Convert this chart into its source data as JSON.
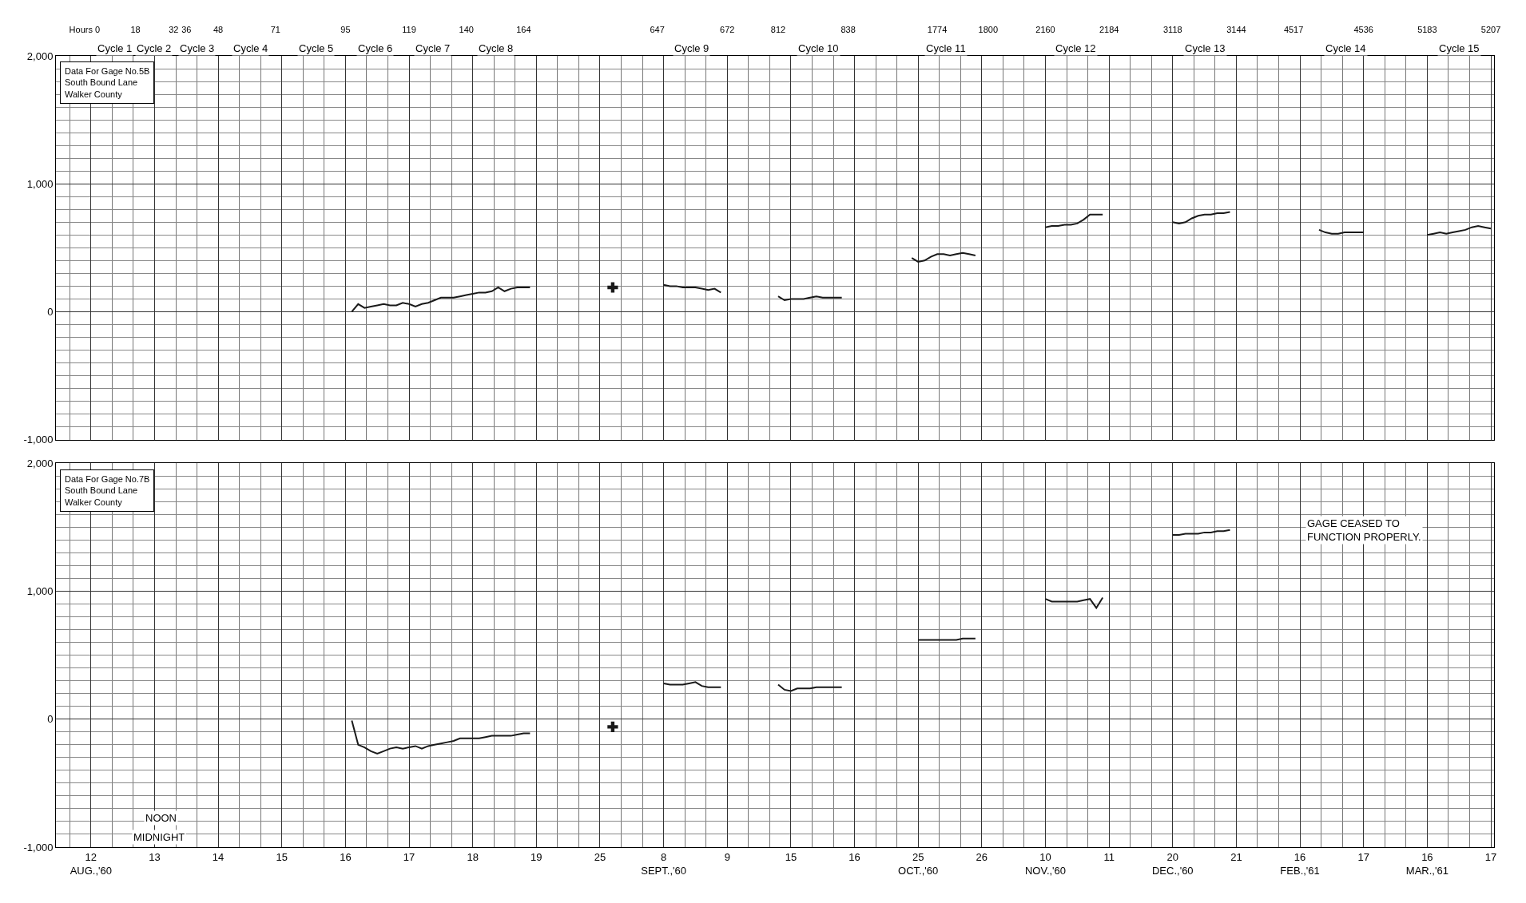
{
  "chart_data": [
    {
      "type": "line",
      "categories": [
        null,
        null,
        null,
        null,
        "Hours 0",
        null,
        null,
        null,
        null,
        null,
        null,
        null,
        "18",
        null,
        null,
        null,
        null,
        null,
        "32",
        null,
        "36",
        null,
        null,
        null,
        null,
        "48",
        null,
        null,
        null,
        null,
        null,
        null,
        null,
        null,
        "71",
        null,
        null,
        null,
        null,
        null,
        null,
        null,
        null,
        null,
        null,
        "95",
        null,
        null,
        null,
        null,
        null,
        null,
        null,
        null,
        null,
        "119",
        null,
        null,
        null,
        null,
        null,
        null,
        null,
        null,
        "140",
        null,
        null,
        null,
        null,
        null,
        null,
        null,
        null,
        "164",
        null,
        null,
        null,
        null,
        null,
        null,
        null,
        null,
        null,
        null,
        null,
        null,
        null,
        null,
        null,
        null,
        null,
        null,
        null,
        null,
        "647",
        null,
        null,
        null,
        null,
        null,
        null,
        null,
        null,
        null,
        null,
        "672",
        null,
        null,
        null,
        null,
        null,
        null,
        null,
        "812",
        null,
        null,
        null,
        null,
        null,
        null,
        null,
        null,
        null,
        null,
        "838",
        null,
        null,
        null,
        null,
        null,
        null,
        null,
        null,
        null,
        null,
        null,
        null,
        null,
        "1774",
        null,
        null,
        null,
        null,
        null,
        null,
        null,
        "1800",
        null,
        null,
        null,
        null,
        null,
        null,
        null,
        null,
        "2160",
        null,
        null,
        null,
        null,
        null,
        null,
        null,
        null,
        null,
        "2184",
        null,
        null,
        null,
        null,
        null,
        null,
        null,
        null,
        null,
        "3118",
        null,
        null,
        null,
        null,
        null,
        null,
        null,
        null,
        null,
        "3144",
        null,
        null,
        null,
        null,
        null,
        null,
        null,
        null,
        "4517",
        null,
        null,
        null,
        null,
        null,
        null,
        null,
        null,
        null,
        null,
        "4536",
        null,
        null,
        null,
        null,
        null,
        null,
        null,
        null,
        null,
        "5183",
        null,
        null,
        null,
        null,
        null,
        null,
        null,
        null,
        null,
        "5207"
      ],
      "ylim": [
        -1000,
        2000
      ],
      "yticks": [
        {
          "value": -1000,
          "label": "-1,000"
        },
        {
          "value": 0,
          "label": "0"
        },
        {
          "value": 1000,
          "label": "1,000"
        },
        {
          "value": 2000,
          "label": "2,000"
        }
      ],
      "grid": true,
      "series": [
        {
          "color": "#1a1a1a",
          "values": [
            null,
            null,
            null,
            null,
            null,
            null,
            null,
            null,
            null,
            null,
            null,
            null,
            null,
            null,
            null,
            null,
            null,
            null,
            null,
            null,
            null,
            null,
            null,
            null,
            null,
            null,
            null,
            null,
            null,
            null,
            null,
            null,
            null,
            null,
            null,
            null,
            null,
            null,
            null,
            null,
            null,
            null,
            null,
            null,
            null,
            null,
            0,
            60,
            30,
            40,
            50,
            60,
            50,
            50,
            70,
            60,
            40,
            60,
            70,
            90,
            110,
            110,
            110,
            120,
            130,
            140,
            150,
            150,
            160,
            190,
            160,
            180,
            190,
            190,
            190,
            null,
            null,
            null,
            null,
            null,
            null,
            null,
            null,
            null,
            null,
            null,
            null,
            null,
            null,
            null,
            null,
            null,
            null,
            null,
            null,
            210,
            200,
            200,
            190,
            190,
            190,
            180,
            170,
            180,
            150,
            null,
            null,
            null,
            null,
            null,
            null,
            null,
            null,
            120,
            90,
            100,
            100,
            100,
            110,
            120,
            110,
            110,
            110,
            110,
            null,
            null,
            null,
            null,
            null,
            null,
            null,
            null,
            null,
            null,
            420,
            390,
            400,
            430,
            450,
            450,
            440,
            450,
            460,
            450,
            440,
            null,
            null,
            null,
            null,
            null,
            null,
            null,
            null,
            null,
            null,
            660,
            670,
            670,
            680,
            680,
            690,
            720,
            760,
            760,
            760,
            null,
            null,
            null,
            null,
            null,
            null,
            null,
            null,
            null,
            null,
            700,
            690,
            700,
            730,
            750,
            760,
            760,
            770,
            770,
            780,
            null,
            null,
            null,
            null,
            null,
            null,
            null,
            null,
            null,
            null,
            null,
            null,
            null,
            640,
            620,
            610,
            610,
            620,
            620,
            620,
            620,
            null,
            null,
            null,
            null,
            null,
            null,
            null,
            null,
            null,
            600,
            610,
            620,
            610,
            620,
            630,
            640,
            660,
            670,
            660,
            650
          ]
        },
        {
          "type": "scatter",
          "marker": "cross",
          "color": "#1a1a1a",
          "values": [
            null,
            null,
            null,
            null,
            null,
            null,
            null,
            null,
            null,
            null,
            null,
            null,
            null,
            null,
            null,
            null,
            null,
            null,
            null,
            null,
            null,
            null,
            null,
            null,
            null,
            null,
            null,
            null,
            null,
            null,
            null,
            null,
            null,
            null,
            null,
            null,
            null,
            null,
            null,
            null,
            null,
            null,
            null,
            null,
            null,
            null,
            null,
            null,
            null,
            null,
            null,
            null,
            null,
            null,
            null,
            null,
            null,
            null,
            null,
            null,
            null,
            null,
            null,
            null,
            null,
            null,
            null,
            null,
            null,
            null,
            null,
            null,
            null,
            null,
            null,
            null,
            null,
            null,
            null,
            null,
            null,
            null,
            null,
            null,
            null,
            null,
            null,
            190,
            null,
            null,
            null,
            null,
            null,
            null,
            null,
            null,
            null,
            null,
            null,
            null,
            null,
            null,
            null,
            null,
            null,
            null,
            null,
            null,
            null,
            null,
            null,
            null,
            null,
            null,
            null,
            null,
            null,
            null,
            null,
            null,
            null,
            null,
            null,
            null,
            null,
            null,
            null,
            null,
            null,
            null,
            null,
            null,
            null,
            null,
            null,
            null,
            null,
            null,
            null,
            null,
            null,
            null,
            null,
            null,
            null,
            null,
            null,
            null,
            null,
            null,
            null,
            null,
            null,
            null,
            null,
            null,
            null,
            null,
            null,
            null,
            null,
            null,
            null,
            null,
            null,
            null,
            null,
            null,
            null,
            null,
            null,
            null,
            null,
            null,
            null,
            null,
            null,
            null,
            null,
            null,
            null,
            null,
            null,
            null,
            null,
            null,
            null,
            null,
            null,
            null,
            null,
            null,
            null,
            null,
            null,
            null,
            null,
            null,
            null,
            null,
            null,
            null,
            null,
            null,
            null,
            null,
            null,
            null,
            null,
            null,
            null,
            null,
            null,
            null,
            null,
            null,
            null,
            null,
            null,
            null,
            null,
            null,
            null,
            null,
            null,
            null
          ]
        }
      ],
      "annotations": [
        "Data For Gage No.5B\nSouth Bound Lane\nWalker County",
        "Cycle 1",
        "Cycle 2",
        "Cycle 3",
        "Cycle 4",
        "Cycle 5",
        "Cycle 6",
        "Cycle 7",
        "Cycle 8",
        "Cycle 9",
        "Cycle 10",
        "Cycle 11",
        "Cycle 12",
        "Cycle 13",
        "Cycle 14",
        "Cycle 15"
      ]
    },
    {
      "type": "line",
      "categories": [
        null,
        null,
        null,
        null,
        null,
        "12\nAUG.,'60",
        null,
        null,
        null,
        null,
        null,
        null,
        null,
        null,
        null,
        "13",
        null,
        null,
        null,
        null,
        null,
        null,
        null,
        null,
        null,
        "14",
        null,
        null,
        null,
        null,
        null,
        null,
        null,
        null,
        null,
        "15",
        null,
        null,
        null,
        null,
        null,
        null,
        null,
        null,
        null,
        "16",
        null,
        null,
        null,
        null,
        null,
        null,
        null,
        null,
        null,
        "17",
        null,
        null,
        null,
        null,
        null,
        null,
        null,
        null,
        null,
        "18",
        null,
        null,
        null,
        null,
        null,
        null,
        null,
        null,
        null,
        "19",
        null,
        null,
        null,
        null,
        null,
        null,
        null,
        null,
        null,
        "25",
        null,
        null,
        null,
        null,
        null,
        null,
        null,
        null,
        null,
        "8\nSEPT.,'60",
        null,
        null,
        null,
        null,
        null,
        null,
        null,
        null,
        null,
        "9",
        null,
        null,
        null,
        null,
        null,
        null,
        null,
        null,
        null,
        "15",
        null,
        null,
        null,
        null,
        null,
        null,
        null,
        null,
        null,
        "16",
        null,
        null,
        null,
        null,
        null,
        null,
        null,
        null,
        null,
        "25\nOCT.,'60",
        null,
        null,
        null,
        null,
        null,
        null,
        null,
        null,
        null,
        "26",
        null,
        null,
        null,
        null,
        null,
        null,
        null,
        null,
        null,
        "10\nNOV.,'60",
        null,
        null,
        null,
        null,
        null,
        null,
        null,
        null,
        null,
        "11",
        null,
        null,
        null,
        null,
        null,
        null,
        null,
        null,
        null,
        "20\nDEC.,'60",
        null,
        null,
        null,
        null,
        null,
        null,
        null,
        null,
        null,
        "21",
        null,
        null,
        null,
        null,
        null,
        null,
        null,
        null,
        null,
        "16\nFEB.,'61",
        null,
        null,
        null,
        null,
        null,
        null,
        null,
        null,
        null,
        "17",
        null,
        null,
        null,
        null,
        null,
        null,
        null,
        null,
        null,
        "16\nMAR.,'61",
        null,
        null,
        null,
        null,
        null,
        null,
        null,
        null,
        null,
        "17"
      ],
      "ylim": [
        -1000,
        2000
      ],
      "yticks": [
        {
          "value": -1000,
          "label": "-1,000"
        },
        {
          "value": 0,
          "label": "0"
        },
        {
          "value": 1000,
          "label": "1,000"
        },
        {
          "value": 2000,
          "label": "2,000"
        }
      ],
      "grid": true,
      "series": [
        {
          "color": "#1a1a1a",
          "values": [
            null,
            null,
            null,
            null,
            null,
            null,
            null,
            null,
            null,
            null,
            null,
            null,
            null,
            null,
            null,
            null,
            null,
            null,
            null,
            null,
            null,
            null,
            null,
            null,
            null,
            null,
            null,
            null,
            null,
            null,
            null,
            null,
            null,
            null,
            null,
            null,
            null,
            null,
            null,
            null,
            null,
            null,
            null,
            null,
            null,
            null,
            -10,
            -200,
            -220,
            -250,
            -270,
            -250,
            -230,
            -220,
            -230,
            -220,
            -210,
            -230,
            -210,
            -200,
            -190,
            -180,
            -170,
            -150,
            -150,
            -150,
            -150,
            -140,
            -130,
            -130,
            -130,
            -130,
            -120,
            -110,
            -110,
            null,
            null,
            null,
            null,
            null,
            null,
            null,
            null,
            null,
            null,
            null,
            null,
            null,
            null,
            null,
            null,
            null,
            null,
            null,
            null,
            280,
            270,
            270,
            270,
            280,
            290,
            260,
            250,
            250,
            250,
            null,
            null,
            null,
            null,
            null,
            null,
            null,
            null,
            270,
            230,
            220,
            240,
            240,
            240,
            250,
            250,
            250,
            250,
            250,
            null,
            null,
            null,
            null,
            null,
            null,
            null,
            null,
            null,
            null,
            null,
            620,
            620,
            620,
            620,
            620,
            620,
            620,
            630,
            630,
            630,
            null,
            null,
            null,
            null,
            null,
            null,
            null,
            null,
            null,
            null,
            940,
            920,
            920,
            920,
            920,
            920,
            930,
            940,
            870,
            950,
            null,
            null,
            null,
            null,
            null,
            null,
            null,
            null,
            null,
            null,
            1440,
            1440,
            1450,
            1450,
            1450,
            1460,
            1460,
            1470,
            1470,
            1480,
            null,
            null,
            null,
            null,
            null,
            null,
            null,
            null,
            null,
            null,
            null,
            null,
            null,
            null,
            null,
            null,
            null,
            null,
            null,
            null,
            null,
            null,
            null,
            null,
            null,
            null,
            null,
            null,
            null,
            null,
            null,
            null,
            null,
            null,
            null,
            null,
            null,
            null,
            null,
            null,
            null
          ]
        },
        {
          "type": "scatter",
          "marker": "cross",
          "color": "#1a1a1a",
          "values": [
            null,
            null,
            null,
            null,
            null,
            null,
            null,
            null,
            null,
            null,
            null,
            null,
            null,
            null,
            null,
            null,
            null,
            null,
            null,
            null,
            null,
            null,
            null,
            null,
            null,
            null,
            null,
            null,
            null,
            null,
            null,
            null,
            null,
            null,
            null,
            null,
            null,
            null,
            null,
            null,
            null,
            null,
            null,
            null,
            null,
            null,
            null,
            null,
            null,
            null,
            null,
            null,
            null,
            null,
            null,
            null,
            null,
            null,
            null,
            null,
            null,
            null,
            null,
            null,
            null,
            null,
            null,
            null,
            null,
            null,
            null,
            null,
            null,
            null,
            null,
            null,
            null,
            null,
            null,
            null,
            null,
            null,
            null,
            null,
            null,
            null,
            null,
            -60,
            null,
            null,
            null,
            null,
            null,
            null,
            null,
            null,
            null,
            null,
            null,
            null,
            null,
            null,
            null,
            null,
            null,
            null,
            null,
            null,
            null,
            null,
            null,
            null,
            null,
            null,
            null,
            null,
            null,
            null,
            null,
            null,
            null,
            null,
            null,
            null,
            null,
            null,
            null,
            null,
            null,
            null,
            null,
            null,
            null,
            null,
            null,
            null,
            null,
            null,
            null,
            null,
            null,
            null,
            null,
            null,
            null,
            null,
            null,
            null,
            null,
            null,
            null,
            null,
            null,
            null,
            null,
            null,
            null,
            null,
            null,
            null,
            null,
            null,
            null,
            null,
            null,
            null,
            null,
            null,
            null,
            null,
            null,
            null,
            null,
            null,
            null,
            null,
            null,
            null,
            null,
            null,
            null,
            null,
            null,
            null,
            null,
            null,
            null,
            null,
            null,
            null,
            null,
            null,
            null,
            null,
            null,
            null,
            null,
            null,
            null,
            null,
            null,
            null,
            null,
            null,
            null,
            null,
            null,
            null,
            null,
            null,
            null,
            null,
            null,
            null,
            null,
            null,
            null,
            null,
            null,
            null,
            null,
            null,
            null,
            null,
            null,
            null
          ]
        }
      ],
      "annotations": [
        "Data For Gage No.7B\nSouth Bound Lane\nWalker County",
        "GAGE CEASED TO\nFUNCTION PROPERLY.",
        "NOON",
        "MIDNIGHT"
      ]
    }
  ]
}
